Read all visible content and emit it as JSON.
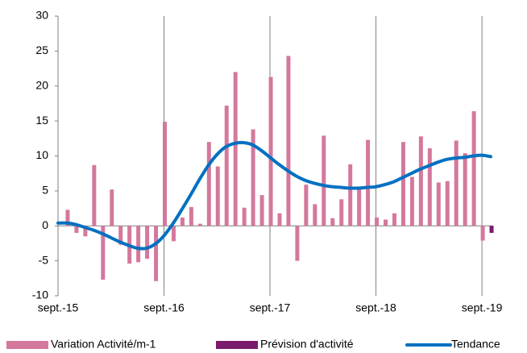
{
  "chart_data": {
    "type": "bar",
    "categories": [
      "sept.-15",
      null,
      null,
      null,
      null,
      null,
      null,
      null,
      null,
      null,
      null,
      null,
      "sept.-16",
      null,
      null,
      null,
      null,
      null,
      null,
      null,
      null,
      null,
      null,
      null,
      "sept.-17",
      null,
      null,
      null,
      null,
      null,
      null,
      null,
      null,
      null,
      null,
      null,
      "sept.-18",
      null,
      null,
      null,
      null,
      null,
      null,
      null,
      null,
      null,
      null,
      null,
      "sept.-19",
      null
    ],
    "series": [
      {
        "name": "Variation Activité/m-1",
        "color": "#d4789d",
        "kind": "bar",
        "values": [
          0,
          2.3,
          -1.0,
          -1.5,
          8.7,
          -7.7,
          5.2,
          -2.7,
          -5.4,
          -5.2,
          -4.7,
          -7.9,
          14.9,
          -2.2,
          1.2,
          2.7,
          0.3,
          12.0,
          8.5,
          17.2,
          22.0,
          2.6,
          13.8,
          4.4,
          21.3,
          1.8,
          24.3,
          -5.0,
          5.9,
          3.1,
          12.9,
          1.1,
          3.8,
          8.8,
          5.5,
          12.3,
          1.2,
          0.9,
          1.8,
          12.0,
          7.0,
          12.8,
          11.1,
          6.2,
          6.4,
          12.2,
          10.4,
          16.4,
          -2.1,
          null
        ]
      },
      {
        "name": "Prévision d'activité",
        "color": "#7a1a6c",
        "kind": "bar",
        "values": [
          null,
          null,
          null,
          null,
          null,
          null,
          null,
          null,
          null,
          null,
          null,
          null,
          null,
          null,
          null,
          null,
          null,
          null,
          null,
          null,
          null,
          null,
          null,
          null,
          null,
          null,
          null,
          null,
          null,
          null,
          null,
          null,
          null,
          null,
          null,
          null,
          null,
          null,
          null,
          null,
          null,
          null,
          null,
          null,
          null,
          null,
          null,
          null,
          null,
          -1.0
        ]
      },
      {
        "name": "Tendance",
        "color": "#0070c0",
        "kind": "line",
        "values": [
          0.4,
          0.4,
          0.2,
          -0.2,
          -0.6,
          -1.1,
          -1.7,
          -2.3,
          -2.8,
          -3.2,
          -3.2,
          -2.6,
          -1.4,
          0.3,
          2.3,
          4.4,
          6.6,
          8.6,
          10.2,
          11.3,
          11.8,
          11.9,
          11.6,
          10.8,
          9.8,
          8.8,
          7.9,
          7.1,
          6.5,
          6.1,
          5.8,
          5.6,
          5.5,
          5.4,
          5.4,
          5.5,
          5.6,
          5.9,
          6.3,
          6.9,
          7.5,
          8.1,
          8.6,
          9.1,
          9.5,
          9.7,
          9.8,
          10.0,
          10.1,
          9.9
        ]
      }
    ],
    "ylim": [
      -10,
      30
    ],
    "yticks": [
      -10,
      -5,
      0,
      5,
      10,
      15,
      20,
      25,
      30
    ],
    "grid": "x",
    "legend": "bottom"
  }
}
